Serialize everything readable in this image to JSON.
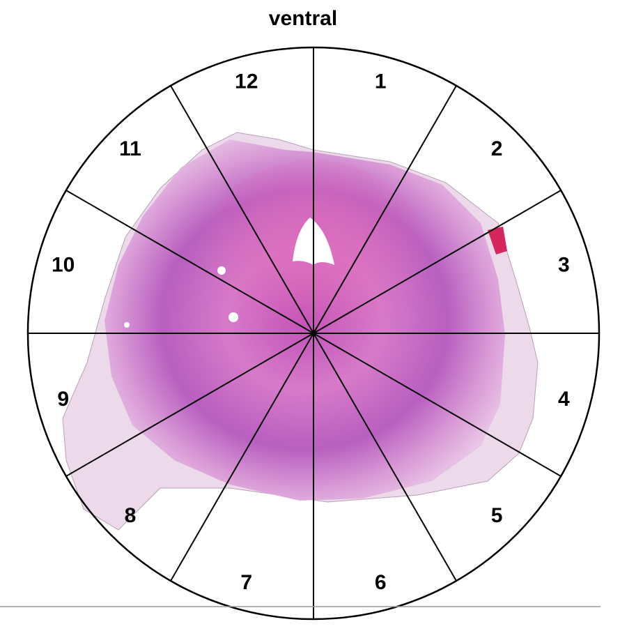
{
  "title": "ventral",
  "sectors": [
    "1",
    "2",
    "3",
    "4",
    "5",
    "6",
    "7",
    "8",
    "9",
    "10",
    "11",
    "12"
  ]
}
